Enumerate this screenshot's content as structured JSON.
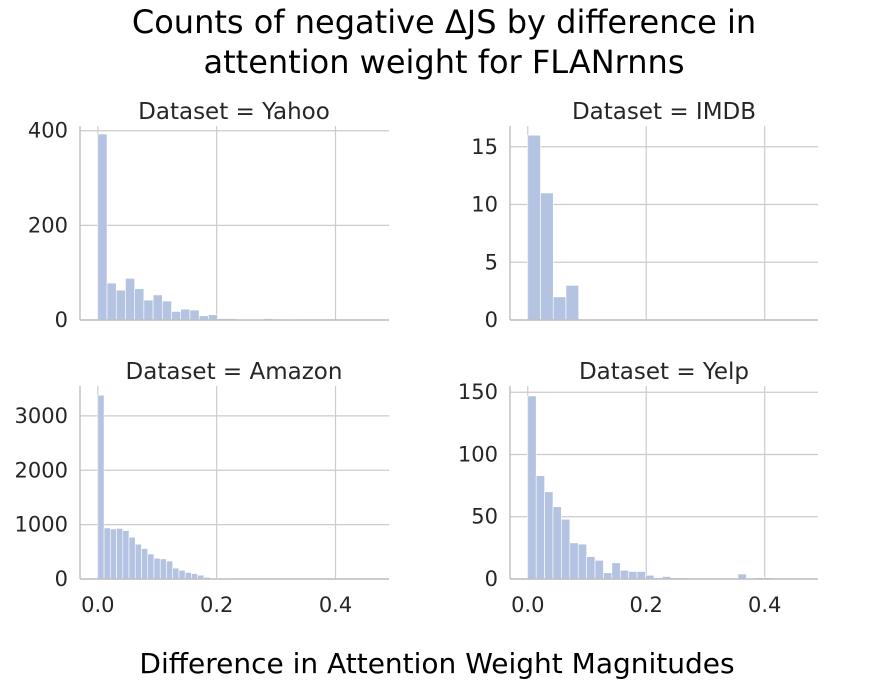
{
  "figure": {
    "title_line1": "Counts of negative ΔJS by difference in",
    "title_line2": "attention weight for FLANrnns",
    "xlabel": "Difference in Attention Weight Magnitudes",
    "bar_color": "#b3c3e1"
  },
  "chart_data": [
    {
      "type": "bar",
      "title": "Dataset = Yahoo",
      "bin_width": 0.0155,
      "bin_start": 0.0,
      "values": [
        393,
        78,
        63,
        88,
        66,
        42,
        53,
        40,
        18,
        23,
        21,
        9,
        11,
        3,
        3,
        1,
        1,
        1,
        3,
        2,
        1,
        1,
        0,
        0,
        0,
        0,
        0,
        0,
        0
      ],
      "xlim": [
        -0.03,
        0.49
      ],
      "ylim": [
        0,
        410
      ],
      "xticks": [
        0.0,
        0.2,
        0.4
      ],
      "xtick_labels": [
        "0.0",
        "0.2",
        "0.4"
      ],
      "yticks": [
        0,
        200,
        400
      ],
      "ytick_labels": [
        "0",
        "200",
        "400"
      ]
    },
    {
      "type": "bar",
      "title": "Dataset = IMDB",
      "bin_width": 0.0215,
      "bin_start": 0.0,
      "values": [
        16,
        11,
        2,
        3
      ],
      "xlim": [
        -0.03,
        0.49
      ],
      "ylim": [
        0,
        16.8
      ],
      "xticks": [
        0.0,
        0.2,
        0.4
      ],
      "xtick_labels": [
        "0.0",
        "0.2",
        "0.4"
      ],
      "yticks": [
        0,
        5,
        10,
        15
      ],
      "ytick_labels": [
        "0",
        "5",
        "10",
        "15"
      ]
    },
    {
      "type": "bar",
      "title": "Dataset = Amazon",
      "bin_width": 0.0105,
      "bin_start": 0.0,
      "values": [
        3380,
        940,
        920,
        930,
        890,
        770,
        640,
        560,
        460,
        380,
        370,
        330,
        200,
        160,
        120,
        100,
        70,
        30,
        15,
        10,
        8,
        6,
        5,
        4,
        3,
        3,
        2,
        2,
        2,
        2,
        2,
        2,
        1,
        1,
        1,
        1,
        1,
        1,
        1,
        1,
        1,
        1,
        1,
        1
      ],
      "xlim": [
        -0.03,
        0.49
      ],
      "ylim": [
        0,
        3550
      ],
      "xticks": [
        0.0,
        0.2,
        0.4
      ],
      "xtick_labels": [
        "0.0",
        "0.2",
        "0.4"
      ],
      "yticks": [
        0,
        1000,
        2000,
        3000
      ],
      "ytick_labels": [
        "0",
        "1000",
        "2000",
        "3000"
      ]
    },
    {
      "type": "bar",
      "title": "Dataset = Yelp",
      "bin_width": 0.0142,
      "bin_start": 0.0,
      "values": [
        147,
        83,
        70,
        58,
        48,
        29,
        28,
        18,
        15,
        5,
        13,
        7,
        6,
        6,
        3,
        1,
        2,
        1,
        1,
        0,
        0,
        0,
        0,
        0,
        0,
        4,
        0,
        1,
        1,
        0,
        0,
        0,
        0
      ],
      "xlim": [
        -0.03,
        0.49
      ],
      "ylim": [
        0,
        155
      ],
      "xticks": [
        0.0,
        0.2,
        0.4
      ],
      "xtick_labels": [
        "0.0",
        "0.2",
        "0.4"
      ],
      "yticks": [
        0,
        50,
        100,
        150
      ],
      "ytick_labels": [
        "0",
        "50",
        "100",
        "150"
      ]
    }
  ]
}
